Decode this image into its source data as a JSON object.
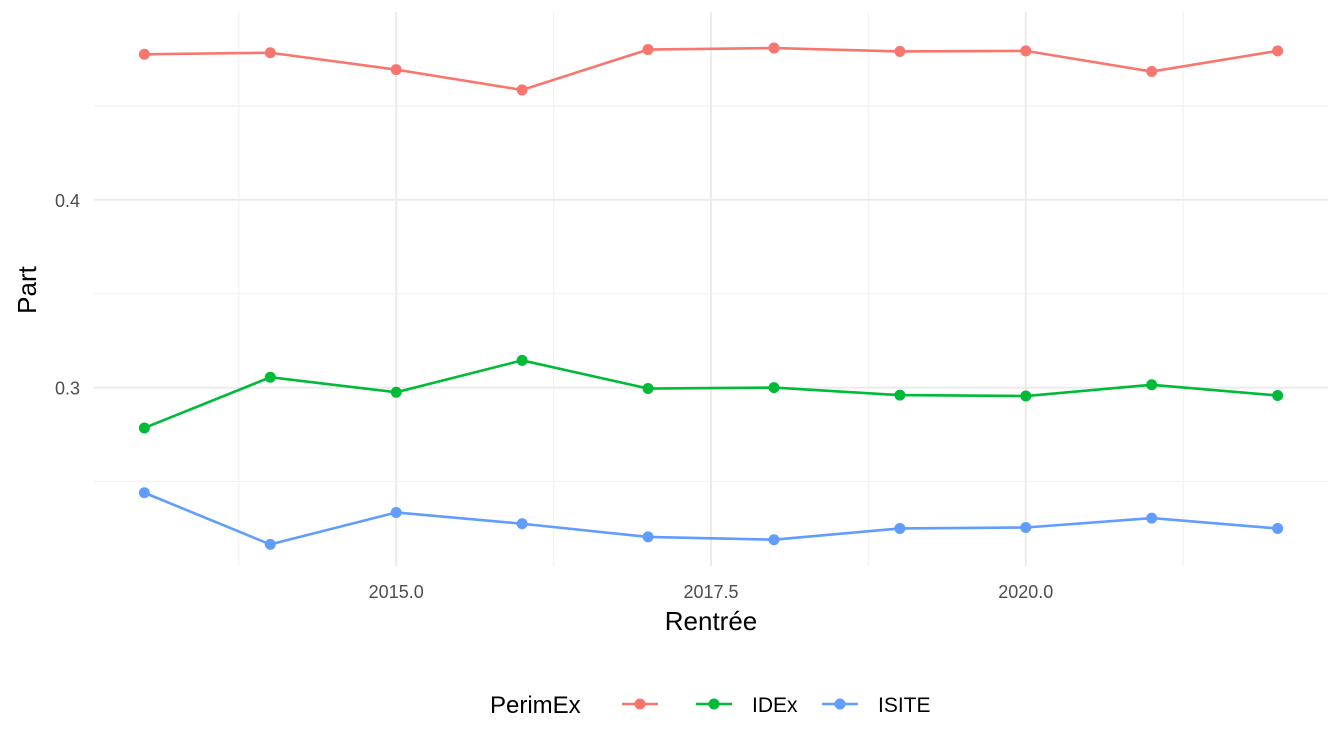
{
  "chart_data": {
    "type": "line",
    "title": "",
    "xlabel": "Rentrée",
    "ylabel": "Part",
    "x": [
      2013,
      2014,
      2015,
      2016,
      2017,
      2018,
      2019,
      2020,
      2021,
      2022
    ],
    "xlim": [
      2012.6,
      2022.4
    ],
    "ylim": [
      0.205,
      0.5
    ],
    "x_ticks": [
      2015.0,
      2017.5,
      2020.0
    ],
    "x_tick_labels": [
      "2015.0",
      "2017.5",
      "2020.0"
    ],
    "x_minor_ticks": [
      2013.75,
      2016.25,
      2018.75,
      2021.25
    ],
    "y_ticks": [
      0.3,
      0.4
    ],
    "y_tick_labels": [
      "0.3",
      "0.4"
    ],
    "y_minor_ticks": [
      0.25,
      0.35,
      0.45
    ],
    "grid": true,
    "legend": {
      "title": "PerimEx",
      "position": "bottom"
    },
    "series": [
      {
        "name": "",
        "color": "#F8766D",
        "values": [
          0.4775,
          0.4783,
          0.4693,
          0.4585,
          0.48,
          0.4808,
          0.479,
          0.4793,
          0.4683,
          0.4793
        ]
      },
      {
        "name": "IDEx",
        "color": "#00BA38",
        "values": [
          0.2785,
          0.3055,
          0.2975,
          0.3145,
          0.2995,
          0.3,
          0.296,
          0.2955,
          0.3015,
          0.2958
        ]
      },
      {
        "name": "ISITE",
        "color": "#619CFF",
        "values": [
          0.244,
          0.2165,
          0.2335,
          0.2275,
          0.2205,
          0.219,
          0.225,
          0.2255,
          0.2305,
          0.225
        ]
      }
    ]
  }
}
